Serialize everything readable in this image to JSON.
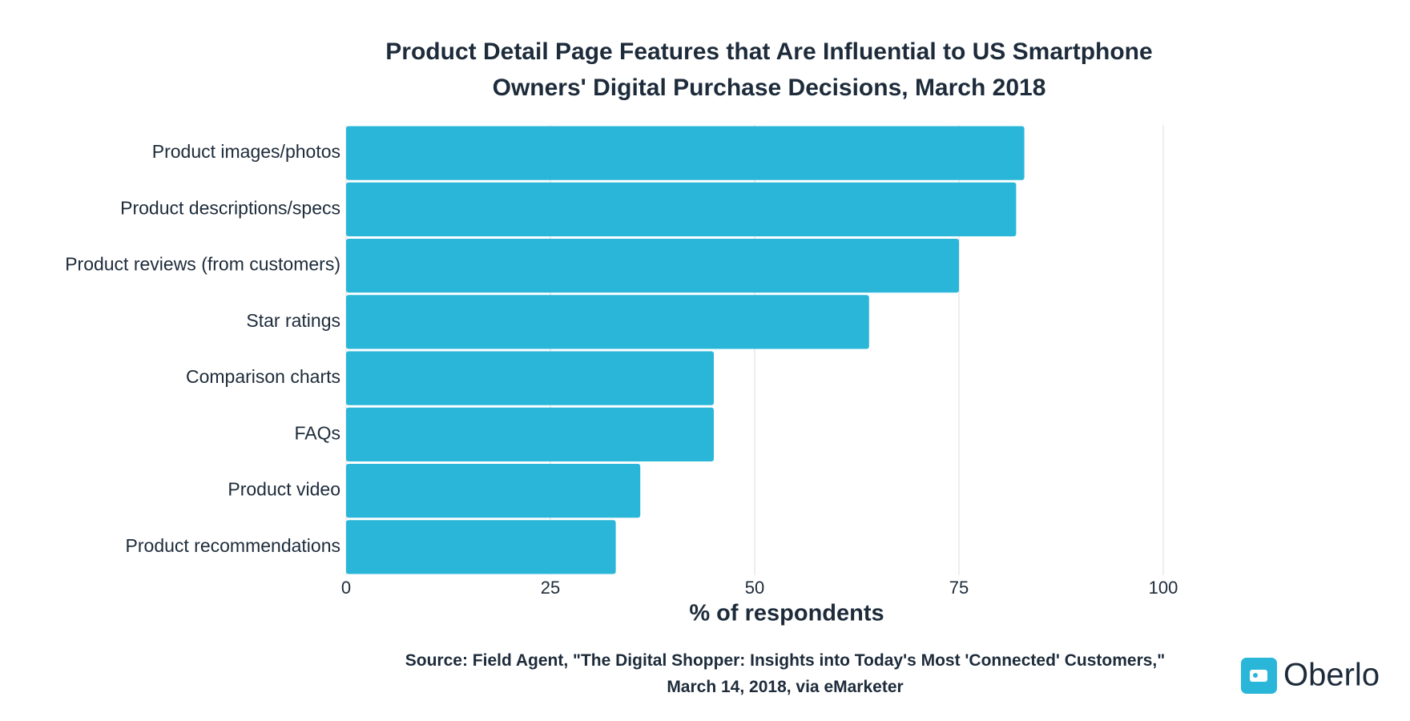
{
  "chart_data": {
    "type": "hbar",
    "title": "Product Detail Page Features that Are Influential to US Smartphone Owners' Digital Purchase Decisions, March 2018",
    "categories": [
      "Product images/photos",
      "Product descriptions/specs",
      "Product reviews (from customers)",
      "Star ratings",
      "Comparison charts",
      "FAQs",
      "Product video",
      "Product recommendations"
    ],
    "values": [
      83,
      82,
      75,
      64,
      45,
      45,
      36,
      33
    ],
    "color": "#29b6d8",
    "xlim": [
      0,
      100
    ],
    "xticks": [
      0,
      25,
      50,
      75,
      100
    ],
    "grid": true,
    "xlabel": "% of respondents",
    "source": "Source:  Field Agent, \"The Digital Shopper: Insights into Today's Most 'Connected' Customers,\" March 14, 2018, via eMarketer",
    "brand": "Oberlo"
  }
}
